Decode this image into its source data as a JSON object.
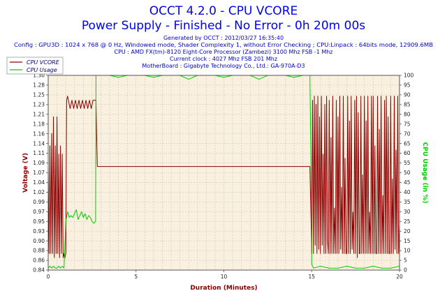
{
  "header": {
    "title": "OCCT 4.2.0 - CPU VCORE",
    "subtitle": "Power Supply - Finished - No Error - 0h 20m 00s",
    "info_lines": [
      "Generated by OCCT : 2012/03/27 16:35:40",
      "Config : GPU3D : 1024 x 768 @ 0 Hz, Windowed mode, Shader Complexity 1, without Error Checking ; CPU:Linpack : 64bits mode, 12909.6MB",
      "CPU : AMD FX(tm)-8120 Eight-Core Processor (Zambezi) 3100 Mhz FSB -1 Mhz",
      "Current clock : 4027 Mhz FSB 201 Mhz",
      "MotherBoard : Gigabyte Technology Co., Ltd.: GA-970A-D3"
    ]
  },
  "colors": {
    "background": "#ffffff",
    "plot_background": "#faf0e0",
    "grid": "#c8c8b4",
    "vcore": "#8b0000",
    "usage": "#00cc00",
    "title": "#0000ee",
    "info": "#0000cc"
  },
  "chart_data": {
    "type": "line",
    "title": "OCCT 4.2.0 - CPU VCORE",
    "subtitle": "Power Supply - Finished - No Error - 0h 20m 00s",
    "xlabel": "Duration (Minutes)",
    "ylabel": "Voltage (V)",
    "y2label": "CPU Usage (in %)",
    "xlim": [
      0,
      20
    ],
    "ylim": [
      0.84,
      1.31
    ],
    "y2lim": [
      0,
      100
    ],
    "x_ticks": [
      "0",
      "5",
      "10",
      "15",
      "20"
    ],
    "y_ticks": [
      "0.84",
      "0.86",
      "0.88",
      "0.90",
      "0.93",
      "0.95",
      "0.97",
      "0.99",
      "1.02",
      "1.04",
      "1.07",
      "1.09",
      "1.11",
      "1.14",
      "1.16",
      "1.18",
      "1.21",
      "1.23",
      "1.25",
      "1.28",
      "1.30"
    ],
    "y2_ticks": [
      "0",
      "5",
      "10",
      "15",
      "20",
      "25",
      "30",
      "35",
      "40",
      "45",
      "50",
      "55",
      "60",
      "65",
      "70",
      "75",
      "80",
      "85",
      "90",
      "95",
      "100"
    ],
    "grid": true,
    "legend_position": "top-left",
    "series": [
      {
        "name": "CPU VCORE",
        "axis": "left",
        "x": [
          0,
          0.05,
          0.1,
          0.15,
          0.2,
          0.25,
          0.3,
          0.35,
          0.4,
          0.45,
          0.5,
          0.55,
          0.6,
          0.65,
          0.7,
          0.75,
          0.8,
          0.85,
          0.9,
          0.95,
          1.0,
          1.05,
          1.1,
          1.15,
          1.25,
          1.35,
          1.45,
          1.55,
          1.65,
          1.75,
          1.85,
          1.95,
          2.05,
          2.15,
          2.25,
          2.35,
          2.45,
          2.55,
          2.65,
          2.72,
          2.75,
          2.8,
          3.5,
          5,
          7.5,
          10,
          12.5,
          14.9,
          15.0,
          15.05,
          15.1,
          15.15,
          15.2,
          15.25,
          15.3,
          15.35,
          15.4,
          15.45,
          15.5,
          15.55,
          15.6,
          15.65,
          15.7,
          15.75,
          15.8,
          15.85,
          15.9,
          15.95,
          16.0,
          16.05,
          16.1,
          16.15,
          16.2,
          16.25,
          16.3,
          16.35,
          16.4,
          16.45,
          16.5,
          16.55,
          16.6,
          16.65,
          16.7,
          16.75,
          16.8,
          16.85,
          16.9,
          16.95,
          17.0,
          17.05,
          17.1,
          17.15,
          17.2,
          17.25,
          17.3,
          17.35,
          17.4,
          17.45,
          17.5,
          17.55,
          17.6,
          17.65,
          17.7,
          17.75,
          17.8,
          17.85,
          17.9,
          17.95,
          18.0,
          18.05,
          18.1,
          18.15,
          18.2,
          18.25,
          18.3,
          18.35,
          18.4,
          18.45,
          18.5,
          18.55,
          18.6,
          18.65,
          18.7,
          18.75,
          18.8,
          18.85,
          18.9,
          18.95,
          19.0,
          19.05,
          19.1,
          19.15,
          19.2,
          19.25,
          19.3,
          19.35,
          19.4,
          19.45,
          19.5,
          19.55,
          19.6,
          19.65,
          19.7,
          19.75,
          19.8,
          19.85,
          19.9,
          19.95,
          20.0
        ],
        "values": [
          1.09,
          0.88,
          1.14,
          0.88,
          1.17,
          0.88,
          1.21,
          0.87,
          1.14,
          0.88,
          1.21,
          0.88,
          1.12,
          0.87,
          1.14,
          0.88,
          1.12,
          0.87,
          0.88,
          0.87,
          0.88,
          1.25,
          1.26,
          1.25,
          1.23,
          1.25,
          1.23,
          1.25,
          1.23,
          1.25,
          1.23,
          1.25,
          1.23,
          1.25,
          1.23,
          1.25,
          1.23,
          1.25,
          1.25,
          1.25,
          1.18,
          1.09,
          1.09,
          1.09,
          1.09,
          1.09,
          1.09,
          1.09,
          0.88,
          1.25,
          0.88,
          1.26,
          0.9,
          1.24,
          0.88,
          1.26,
          0.89,
          1.21,
          0.88,
          1.26,
          0.9,
          1.12,
          0.88,
          1.24,
          0.88,
          1.26,
          0.91,
          0.88,
          1.25,
          0.88,
          1.16,
          0.88,
          1.26,
          0.88,
          0.99,
          0.88,
          1.25,
          0.88,
          1.21,
          0.88,
          1.26,
          0.89,
          1.04,
          0.88,
          1.26,
          0.88,
          1.11,
          0.88,
          0.88,
          1.26,
          0.88,
          1.2,
          0.88,
          1.26,
          0.89,
          0.98,
          0.88,
          1.25,
          0.88,
          1.26,
          0.87,
          1.22,
          0.88,
          0.88,
          1.26,
          0.88,
          1.07,
          0.88,
          1.26,
          0.88,
          1.2,
          0.88,
          1.26,
          0.88,
          0.98,
          0.88,
          1.26,
          0.88,
          1.26,
          0.88,
          1.14,
          0.88,
          0.88,
          1.26,
          0.88,
          1.18,
          0.88,
          1.26,
          0.88,
          1.02,
          0.88,
          1.25,
          0.88,
          1.26,
          0.88,
          1.21,
          0.88,
          0.88,
          1.26,
          0.88,
          1.06,
          0.88,
          1.26,
          0.89,
          1.13,
          0.88,
          1.26,
          0.88,
          0.95
        ]
      },
      {
        "name": "CPU Usage",
        "axis": "right",
        "x": [
          0,
          0.1,
          0.2,
          0.3,
          0.4,
          0.5,
          0.6,
          0.7,
          0.8,
          0.9,
          1.0,
          1.1,
          1.2,
          1.3,
          1.4,
          1.5,
          1.6,
          1.7,
          1.8,
          1.9,
          2.0,
          2.1,
          2.2,
          2.3,
          2.4,
          2.5,
          2.6,
          2.7,
          2.72,
          2.8,
          3.5,
          4.0,
          4.5,
          5.0,
          5.5,
          6.0,
          6.5,
          7.0,
          7.5,
          8.0,
          8.5,
          9.0,
          9.5,
          10.0,
          10.5,
          11.0,
          11.5,
          12.0,
          12.5,
          13.0,
          13.5,
          14.0,
          14.5,
          14.9,
          14.95,
          15.0,
          15.1,
          15.5,
          16.0,
          16.5,
          17.0,
          17.5,
          18.0,
          18.5,
          19.0,
          19.5,
          20.0
        ],
        "values": [
          1,
          2,
          1,
          2,
          1,
          1,
          2,
          1,
          2,
          1,
          25,
          30,
          27,
          28,
          27,
          29,
          31,
          26,
          28,
          30,
          27,
          29,
          26,
          28,
          27,
          25,
          24,
          25,
          100,
          100,
          100,
          99,
          100,
          100,
          100,
          99,
          100,
          100,
          100,
          98,
          100,
          100,
          100,
          99,
          100,
          100,
          100,
          98,
          100,
          100,
          100,
          99,
          100,
          100,
          60,
          3,
          1,
          2,
          1,
          1,
          2,
          1,
          1,
          2,
          1,
          1,
          2
        ]
      }
    ]
  }
}
